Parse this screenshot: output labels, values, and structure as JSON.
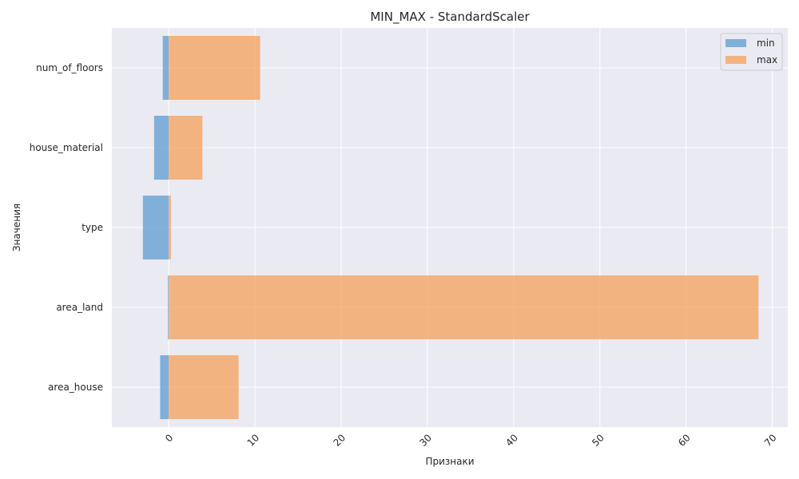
{
  "chart_data": {
    "type": "bar",
    "orientation": "horizontal",
    "title": "MIN_MAX - StandardScaler",
    "xlabel": "Признаки",
    "ylabel": "Значения",
    "categories": [
      "area_house",
      "area_land",
      "type",
      "house_material",
      "num_of_floors"
    ],
    "series": [
      {
        "name": "min",
        "values": [
          -1.0,
          -0.1,
          -3.0,
          -1.7,
          -0.7
        ],
        "color": "#5c9bd1"
      },
      {
        "name": "max",
        "values": [
          8.1,
          68.4,
          0.25,
          3.9,
          10.6
        ],
        "color": "#f5a05a"
      }
    ],
    "xlim": [
      -6.6,
      71.8
    ],
    "xticks": [
      "0",
      "10",
      "20",
      "30",
      "40",
      "50",
      "60",
      "70"
    ],
    "xtick_rotation": 45,
    "grid": true,
    "legend_position": "top-right",
    "background": "#eaeaf2"
  }
}
